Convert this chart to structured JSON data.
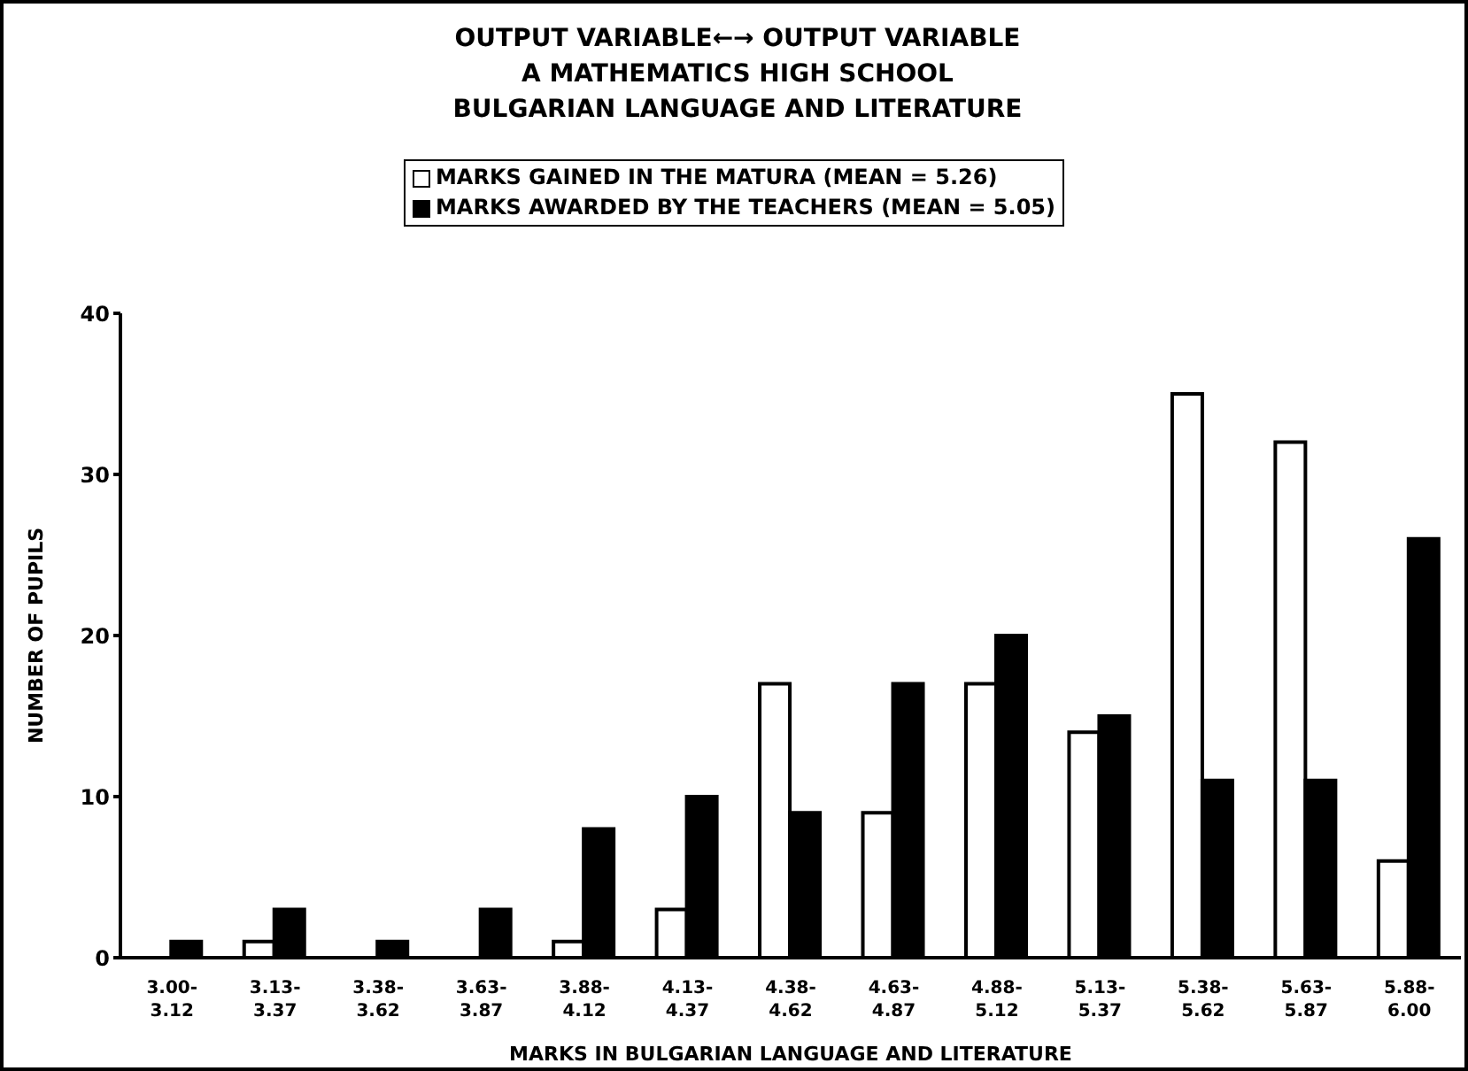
{
  "chart_data": {
    "type": "bar",
    "title": "OUTPUT VARIABLE←→ OUTPUT VARIABLE\nA MATHEMATICS HIGH SCHOOL\nBULGARIAN LANGUAGE AND LITERATURE",
    "xlabel": "MARKS IN BULGARIAN LANGUAGE AND LITERATURE",
    "ylabel": "NUMBER OF PUPILS",
    "categories": [
      "3.00-3.12",
      "3.13-3.37",
      "3.38-3.62",
      "3.63-3.87",
      "3.88-4.12",
      "4.13-4.37",
      "4.38-4.62",
      "4.63-4.87",
      "4.88-5.12",
      "5.13-5.37",
      "5.38-5.62",
      "5.63-5.87",
      "5.88-6.00"
    ],
    "series": [
      {
        "name": "MARKS GAINED IN THE MATURA (MEAN = 5.26)",
        "color": "#ffffff",
        "values": [
          0,
          1,
          0,
          0,
          1,
          3,
          17,
          9,
          17,
          14,
          35,
          32,
          6
        ]
      },
      {
        "name": "MARKS AWARDED BY THE TEACHERS (MEAN = 5.05)",
        "color": "#000000",
        "values": [
          1,
          3,
          1,
          3,
          8,
          10,
          9,
          17,
          20,
          15,
          11,
          11,
          26
        ]
      }
    ],
    "ylim": [
      0,
      40
    ],
    "yticks": [
      0,
      10,
      20,
      30,
      40
    ],
    "grid": false,
    "legend": "top"
  }
}
